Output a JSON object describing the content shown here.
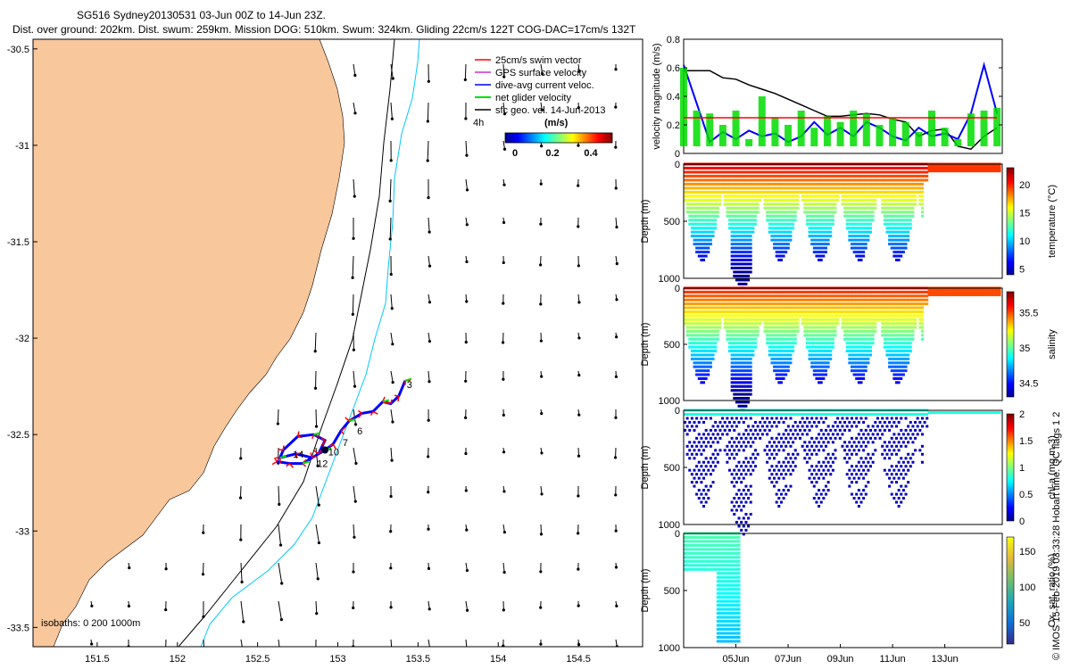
{
  "title_line1": "SG516 Sydney20130531 03-Jun 00Z to 14-Jun 23Z.",
  "title_line2": "Dist. over ground: 202km. Dist. swum: 259km. Mission DOG: 510km. Swum: 324km. Gliding 22cm/s 122T COG-DAC=17cm/s 132T",
  "credit": "© IMOS 15-Feb-2019 03:33:28 Hobart time. QC flags 1  2",
  "colors": {
    "land": "#f9c79c",
    "swim": "#ff0000",
    "gps": "#cc33cc",
    "dac": "#0000ff",
    "net": "#00dd00",
    "sfc": "#000000",
    "isobath_200": "#000000",
    "isobath_1000": "#00c8ff"
  },
  "chart_data": [
    {
      "type": "map",
      "xlim": [
        151.1,
        154.9
      ],
      "ylim": [
        -33.6,
        -30.45
      ],
      "x_ticks": [
        "151.5",
        "152",
        "152.5",
        "153",
        "153.5",
        "154",
        "154.5"
      ],
      "y_ticks": [
        "-30.5",
        "-31",
        "-31.5",
        "-32",
        "-32.5",
        "-33",
        "-33.5"
      ],
      "legend": {
        "placement": "top-right",
        "entries": [
          "25cm/s swim vector",
          "GPS surface velocity",
          "dive-avg current veloc.",
          "net glider velocity",
          "sfc geo. vel. 14-Jun-2013"
        ],
        "extra": "4h"
      },
      "colorbar": {
        "label": "(m/s)",
        "ticks": [
          "0",
          "0.2",
          "0.4"
        ],
        "range": [
          0,
          0.5
        ]
      },
      "isobath_label": "isobaths: 0   200   1000m",
      "day_labels": [
        {
          "text": "3",
          "lon": 153.43,
          "lat": -32.24
        },
        {
          "text": "6",
          "lon": 153.12,
          "lat": -32.48
        },
        {
          "text": "7",
          "lon": 153.03,
          "lat": -32.54
        },
        {
          "text": "10",
          "lon": 152.94,
          "lat": -32.59
        },
        {
          "text": "12",
          "lon": 152.87,
          "lat": -32.65
        },
        {
          "text": "14",
          "lon": 152.72,
          "lat": -32.6
        }
      ],
      "track": [
        [
          153.42,
          -32.22
        ],
        [
          153.38,
          -32.3
        ],
        [
          153.33,
          -32.34
        ],
        [
          153.28,
          -32.33
        ],
        [
          153.22,
          -32.38
        ],
        [
          153.15,
          -32.39
        ],
        [
          153.07,
          -32.43
        ],
        [
          153.02,
          -32.48
        ],
        [
          152.97,
          -32.55
        ],
        [
          152.92,
          -32.58
        ],
        [
          152.84,
          -32.62
        ],
        [
          152.74,
          -32.6
        ],
        [
          152.64,
          -32.62
        ],
        [
          152.66,
          -32.58
        ],
        [
          152.75,
          -32.51
        ],
        [
          152.85,
          -32.5
        ],
        [
          152.92,
          -32.53
        ],
        [
          152.88,
          -32.6
        ],
        [
          152.78,
          -32.65
        ],
        [
          152.7,
          -32.65
        ],
        [
          152.62,
          -32.64
        ]
      ]
    },
    {
      "type": "line",
      "ylabel": "velocity magnitude (m/s)",
      "ylim": [
        0,
        0.8
      ],
      "y_ticks": [
        "0",
        "0.2",
        "0.4",
        "0.6",
        "0.8"
      ],
      "x_days": [
        3,
        3.5,
        4,
        4.5,
        5,
        5.5,
        6,
        6.5,
        7,
        7.5,
        8,
        8.5,
        9,
        9.5,
        10,
        10.5,
        11,
        11.5,
        12,
        12.5,
        13,
        13.5,
        14,
        14.5,
        15
      ],
      "series": [
        {
          "values": [
            0.58,
            0.58,
            0.58,
            0.53,
            0.52,
            0.48,
            0.45,
            0.42,
            0.38,
            0.34,
            0.3,
            0.26,
            0.26,
            0.27,
            0.28,
            0.27,
            0.24,
            0.22,
            0.12,
            0.16,
            0.17,
            0.05,
            0.03,
            0.12,
            0.18
          ]
        },
        {
          "values": [
            0.62,
            0.35,
            0.08,
            0.15,
            0.1,
            0.16,
            0.12,
            0.14,
            0.08,
            0.12,
            0.22,
            0.13,
            0.18,
            0.12,
            0.22,
            0.18,
            0.12,
            0.09,
            0.18,
            0.12,
            0.14,
            0.1,
            0.28,
            0.62,
            0.28
          ]
        },
        {
          "values": [
            0.6,
            0.3,
            0.28,
            0.2,
            0.3,
            0.1,
            0.4,
            0.25,
            0.2,
            0.3,
            0.18,
            0.26,
            0.22,
            0.3,
            0.28,
            0.2,
            0.25,
            0.22,
            0.15,
            0.3,
            0.18,
            0.1,
            0.28,
            0.3,
            0.32
          ]
        },
        {
          "values": [
            0.25,
            0.25,
            0.25,
            0.25,
            0.25,
            0.25,
            0.25,
            0.25,
            0.25,
            0.25,
            0.25,
            0.25,
            0.25,
            0.25,
            0.25,
            0.25,
            0.25,
            0.25,
            0.25,
            0.25,
            0.25,
            0.25,
            0.25,
            0.25,
            0.25
          ]
        }
      ]
    },
    {
      "type": "scatter",
      "ylabel": "Depth (m)",
      "ylim": [
        1000,
        0
      ],
      "y_ticks": [
        "0",
        "500",
        "1000"
      ],
      "colorbar": {
        "label": "temperature (°C)",
        "ticks": [
          "5",
          "10",
          "15",
          "20"
        ],
        "range": [
          4,
          23
        ]
      }
    },
    {
      "type": "scatter",
      "ylabel": "Depth (m)",
      "ylim": [
        1000,
        0
      ],
      "y_ticks": [
        "0",
        "500",
        "1000"
      ],
      "colorbar": {
        "label": "salinity",
        "ticks": [
          "34.5",
          "35",
          "35.5"
        ],
        "range": [
          34.3,
          35.8
        ]
      }
    },
    {
      "type": "scatter",
      "ylabel": "Depth (m)",
      "ylim": [
        1000,
        0
      ],
      "y_ticks": [
        "0",
        "500",
        "1000"
      ],
      "colorbar": {
        "label": "chl-a (mg m-3)",
        "ticks": [
          "0",
          "0.5",
          "1",
          "1.5",
          "2"
        ],
        "range": [
          0,
          2
        ]
      }
    },
    {
      "type": "scatter",
      "ylabel": "Depth (m)",
      "ylim": [
        1000,
        0
      ],
      "y_ticks": [
        "0",
        "500",
        "1000"
      ],
      "x_ticks": [
        "05Jun",
        "07Jun",
        "09Jun",
        "11Jun",
        "13Jun"
      ],
      "x_tick_days": [
        5,
        7,
        9,
        11,
        13
      ],
      "xlim_days": [
        3,
        15.2
      ],
      "colorbar": {
        "label": "Ox. sat. ratio (%)",
        "ticks": [
          "50",
          "100",
          "150"
        ],
        "range": [
          20,
          170
        ]
      }
    }
  ]
}
